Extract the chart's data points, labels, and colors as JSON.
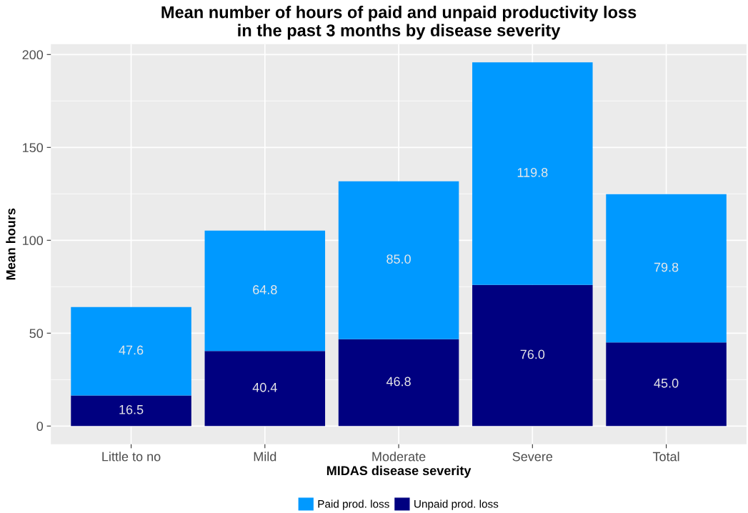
{
  "chart_data": {
    "type": "bar",
    "title": "Mean number of hours of paid and unpaid productivity loss\nin the past 3 months by disease severity",
    "xlabel": "MIDAS disease severity",
    "ylabel": "Mean hours",
    "categories": [
      "Little to no",
      "Mild",
      "Moderate",
      "Severe",
      "Total"
    ],
    "stacked": true,
    "series": [
      {
        "name": "Unpaid prod. loss",
        "color": "#000080",
        "values": [
          16.5,
          40.4,
          46.8,
          76.0,
          45.0
        ],
        "value_labels": [
          "16.5",
          "40.4",
          "46.8",
          "76.0",
          "45.0"
        ]
      },
      {
        "name": "Paid prod. loss",
        "color": "#0099ff",
        "values": [
          47.6,
          64.8,
          85.0,
          119.8,
          79.8
        ],
        "value_labels": [
          "47.6",
          "64.8",
          "85.0",
          "119.8",
          "79.8"
        ]
      }
    ],
    "ylim": [
      -9.8,
      205.6
    ],
    "yticks": [
      0,
      50,
      100,
      150,
      200
    ],
    "grid": true,
    "legend": "bottom"
  }
}
